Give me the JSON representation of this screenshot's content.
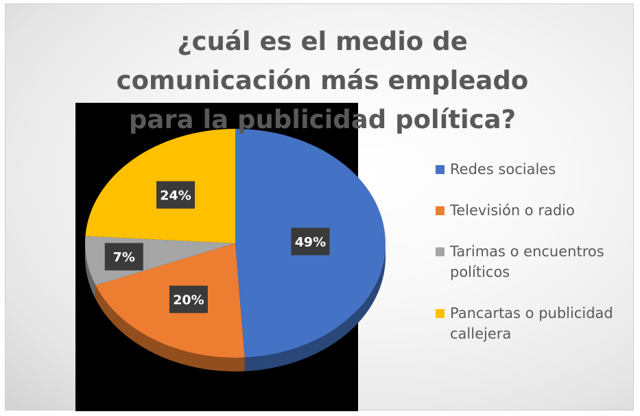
{
  "chart_data": {
    "type": "pie",
    "title": "¿cuál es el medio de comunicación más empleado para la publicidad política?",
    "categories": [
      "Redes sociales",
      "Televisión o radio",
      "Tarimas o encuentros políticos",
      "Pancartas o publicidad callejera"
    ],
    "values": [
      49,
      20,
      7,
      24
    ],
    "data_labels": [
      "49%",
      "20%",
      "7%",
      "24%"
    ],
    "colors": [
      "#4472C4",
      "#ED7D31",
      "#A5A5A5",
      "#FFC000"
    ],
    "style": "3d",
    "legend_position": "right"
  }
}
